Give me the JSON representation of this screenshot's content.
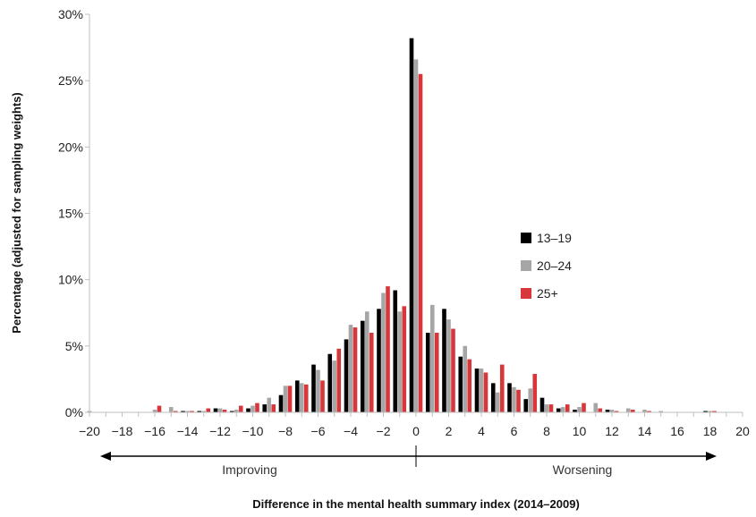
{
  "chart_data": {
    "type": "bar",
    "xlabel": "Difference in the mental health summary index (2014–2009)",
    "ylabel": "Percentage (adjusted for sampling weights)",
    "ylim": [
      0,
      30
    ],
    "yticks": [
      "0%",
      "5%",
      "10%",
      "15%",
      "20%",
      "25%",
      "30%"
    ],
    "xlim": [
      -20,
      20
    ],
    "xticks": [
      "−20",
      "−18",
      "−16",
      "−14",
      "−12",
      "−10",
      "−8",
      "−6",
      "−4",
      "−2",
      "0",
      "2",
      "4",
      "6",
      "8",
      "10",
      "12",
      "14",
      "16",
      "18",
      "20"
    ],
    "grid": false,
    "legend_position": "right",
    "x": [
      -20,
      -19,
      -18,
      -17,
      -16,
      -15,
      -14,
      -13,
      -12,
      -11,
      -10,
      -9,
      -8,
      -7,
      -6,
      -5,
      -4,
      -3,
      -2,
      -1,
      0,
      1,
      2,
      3,
      4,
      5,
      6,
      7,
      8,
      9,
      10,
      11,
      12,
      13,
      14,
      15,
      16,
      17,
      18,
      19
    ],
    "series": [
      {
        "name": "13–19",
        "color": "#000000",
        "values": [
          0,
          0,
          0,
          0,
          0,
          0,
          0.1,
          0.1,
          0.3,
          0.1,
          0.3,
          0.6,
          1.3,
          2.4,
          3.6,
          4.4,
          5.5,
          6.9,
          7.8,
          9.2,
          28.2,
          6.0,
          7.8,
          4.2,
          3.3,
          2.2,
          2.2,
          1.0,
          1.1,
          0.3,
          0.2,
          0,
          0.2,
          0,
          0,
          0,
          0,
          0,
          0.1,
          0
        ]
      },
      {
        "name": "20–24",
        "color": "#a6a6a6",
        "values": [
          0.1,
          0,
          0,
          0,
          0.2,
          0.4,
          0.1,
          0.1,
          0.3,
          0.2,
          0.5,
          1.1,
          2.0,
          2.2,
          3.2,
          3.9,
          6.6,
          7.6,
          9.0,
          7.6,
          26.6,
          8.1,
          7.0,
          5.0,
          3.3,
          1.5,
          1.9,
          1.8,
          0.6,
          0.4,
          0.4,
          0.7,
          0.2,
          0.3,
          0.2,
          0.1,
          0,
          0,
          0.1,
          0
        ]
      },
      {
        "name": "25+",
        "color": "#d7373b",
        "values": [
          0,
          0,
          0,
          0,
          0.5,
          0.1,
          0.1,
          0.3,
          0.2,
          0.5,
          0.7,
          0.6,
          2.0,
          2.1,
          2.4,
          4.8,
          6.4,
          6.0,
          9.5,
          8.0,
          25.5,
          6.0,
          6.3,
          4.0,
          3.0,
          3.6,
          1.7,
          2.9,
          0.6,
          0.6,
          0.7,
          0.3,
          0.1,
          0.2,
          0.1,
          0,
          0,
          0,
          0.1,
          0
        ]
      }
    ],
    "annotations": [
      "Improving",
      "Worsening"
    ]
  }
}
